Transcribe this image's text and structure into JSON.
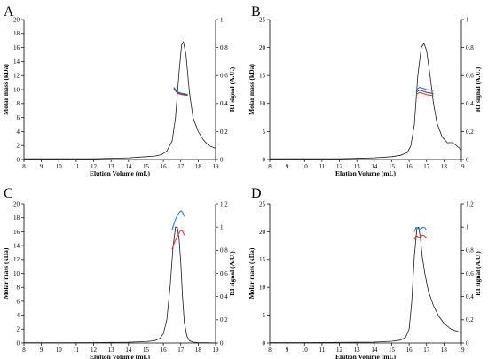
{
  "chart_data": [
    {
      "type": "line",
      "panel_label": "A",
      "xlabel": "Elution Volume (mL)",
      "ylabel": "Molar mass (kDa)",
      "y2label": "RI signal (A.U.)",
      "xlim": [
        8,
        19
      ],
      "xticks": [
        8,
        9,
        10,
        11,
        12,
        13,
        14,
        15,
        16,
        17,
        18,
        19
      ],
      "ylim": [
        0,
        20
      ],
      "yticks": [
        0,
        2,
        4,
        6,
        8,
        10,
        12,
        14,
        16,
        18,
        20
      ],
      "y2lim": [
        0,
        1
      ],
      "y2ticks": [
        0,
        0.2,
        0.4,
        0.6,
        0.8,
        1
      ],
      "series": [
        {
          "axis": "y2",
          "style": "ri",
          "x": [
            8,
            10,
            12,
            13,
            14,
            15,
            15.5,
            15.9,
            16.2,
            16.5,
            16.7,
            16.9,
            17.05,
            17.15,
            17.3,
            17.5,
            17.7,
            18.0,
            18.3,
            18.6,
            19.0
          ],
          "y": [
            0.005,
            0.005,
            0.006,
            0.008,
            0.012,
            0.02,
            0.025,
            0.035,
            0.06,
            0.13,
            0.3,
            0.62,
            0.82,
            0.84,
            0.75,
            0.48,
            0.3,
            0.2,
            0.14,
            0.1,
            0.08
          ]
        },
        {
          "axis": "y",
          "style": "blue",
          "x": [
            16.6,
            16.8,
            17.0,
            17.2,
            17.4
          ],
          "y": [
            10.3,
            9.7,
            9.5,
            9.4,
            9.3
          ]
        },
        {
          "axis": "y",
          "style": "red",
          "x": [
            16.6,
            16.8,
            17.0,
            17.2,
            17.4
          ],
          "y": [
            10.1,
            9.5,
            9.3,
            9.2,
            9.2
          ]
        },
        {
          "axis": "y",
          "style": "dark",
          "x": [
            16.6,
            16.8,
            17.0,
            17.2,
            17.4
          ],
          "y": [
            10.2,
            9.6,
            9.4,
            9.3,
            9.2
          ]
        }
      ]
    },
    {
      "type": "line",
      "panel_label": "B",
      "xlabel": "Elution Volume (mL)",
      "ylabel": "Molar mass (kDa)",
      "y2label": "RI signal (A.U.)",
      "xlim": [
        8,
        19
      ],
      "xticks": [
        8,
        9,
        10,
        11,
        12,
        13,
        14,
        15,
        16,
        17,
        18,
        19
      ],
      "ylim": [
        0,
        25
      ],
      "yticks": [
        0,
        5,
        10,
        15,
        20,
        25
      ],
      "y2lim": [
        0,
        1
      ],
      "y2ticks": [
        0,
        0.2,
        0.4,
        0.6,
        0.8,
        1
      ],
      "series": [
        {
          "axis": "y2",
          "style": "ri",
          "x": [
            8,
            10,
            12,
            13,
            14,
            15,
            15.5,
            15.9,
            16.1,
            16.3,
            16.5,
            16.7,
            16.85,
            17.0,
            17.2,
            17.4,
            17.6,
            17.9,
            18.2,
            18.5,
            18.8,
            19.0
          ],
          "y": [
            0.005,
            0.005,
            0.006,
            0.008,
            0.012,
            0.02,
            0.03,
            0.05,
            0.1,
            0.25,
            0.6,
            0.8,
            0.83,
            0.78,
            0.6,
            0.4,
            0.26,
            0.16,
            0.12,
            0.12,
            0.09,
            0.07
          ]
        },
        {
          "axis": "y",
          "style": "blue",
          "x": [
            16.4,
            16.6,
            16.8,
            17.0,
            17.2,
            17.4
          ],
          "y": [
            12.4,
            12.9,
            12.7,
            12.5,
            12.4,
            12.3
          ]
        },
        {
          "axis": "y",
          "style": "red",
          "x": [
            16.4,
            16.6,
            16.8,
            17.0,
            17.2,
            17.4
          ],
          "y": [
            11.6,
            12.0,
            11.8,
            11.6,
            11.5,
            11.4
          ]
        },
        {
          "axis": "y",
          "style": "dark",
          "x": [
            16.4,
            16.6,
            16.8,
            17.0,
            17.2,
            17.4
          ],
          "y": [
            12.0,
            12.4,
            12.2,
            12.0,
            11.9,
            11.8
          ]
        }
      ]
    },
    {
      "type": "line",
      "panel_label": "C",
      "xlabel": "Elution Volume (mL)",
      "ylabel": "Molar mass (kDa)",
      "y2label": "RI signal (A.U.)",
      "xlim": [
        8,
        19
      ],
      "xticks": [
        8,
        9,
        10,
        11,
        12,
        13,
        14,
        15,
        16,
        17,
        18,
        19
      ],
      "ylim": [
        0,
        20
      ],
      "yticks": [
        0,
        2,
        4,
        6,
        8,
        10,
        12,
        14,
        16,
        18,
        20
      ],
      "y2lim": [
        0,
        1.2
      ],
      "y2ticks": [
        0,
        0.2,
        0.4,
        0.6,
        0.8,
        1,
        1.2
      ],
      "series": [
        {
          "axis": "y2",
          "style": "ri",
          "x": [
            8,
            10,
            12,
            13,
            14,
            15,
            15.5,
            15.8,
            16.0,
            16.2,
            16.4,
            16.55,
            16.7,
            16.8,
            16.9,
            17.0,
            17.1,
            17.2,
            17.35,
            17.5,
            17.7,
            18.0,
            18.5,
            19.0
          ],
          "y": [
            0.003,
            0.003,
            0.004,
            0.005,
            0.007,
            0.012,
            0.02,
            0.04,
            0.08,
            0.2,
            0.5,
            0.82,
            1.0,
            1.0,
            0.9,
            0.7,
            0.4,
            0.18,
            0.06,
            0.02,
            0.008,
            0.004,
            0.002,
            0.001
          ]
        },
        {
          "axis": "y",
          "style": "blue",
          "x": [
            16.5,
            16.6,
            16.7,
            16.8,
            16.9,
            17.0,
            17.1,
            17.2
          ],
          "y": [
            16.2,
            17.1,
            17.8,
            18.3,
            18.7,
            19.0,
            18.8,
            18.2
          ]
        },
        {
          "axis": "y",
          "style": "red",
          "x": [
            16.5,
            16.6,
            16.7,
            16.8,
            16.9,
            17.0,
            17.1,
            17.2
          ],
          "y": [
            13.5,
            14.2,
            14.8,
            15.3,
            15.8,
            16.2,
            16.1,
            15.5
          ]
        }
      ]
    },
    {
      "type": "line",
      "panel_label": "D",
      "xlabel": "Elution Volume (mL)",
      "ylabel": "Molar mass (kDa)",
      "y2label": "RI signal (A.U.)",
      "xlim": [
        8,
        19
      ],
      "xticks": [
        8,
        9,
        10,
        11,
        12,
        13,
        14,
        15,
        16,
        17,
        18,
        19
      ],
      "ylim": [
        0,
        25
      ],
      "yticks": [
        0,
        5,
        10,
        15,
        20,
        25
      ],
      "y2lim": [
        0,
        1.2
      ],
      "y2ticks": [
        0,
        0.2,
        0.4,
        0.6,
        0.8,
        1,
        1.2
      ],
      "series": [
        {
          "axis": "y2",
          "style": "ri",
          "x": [
            8,
            10,
            12,
            13,
            14,
            15,
            15.5,
            15.8,
            16.0,
            16.15,
            16.3,
            16.45,
            16.55,
            16.65,
            16.75,
            16.9,
            17.1,
            17.4,
            17.7,
            18.0,
            18.4,
            18.8,
            19.0
          ],
          "y": [
            0.004,
            0.004,
            0.005,
            0.006,
            0.008,
            0.015,
            0.025,
            0.05,
            0.12,
            0.35,
            0.75,
            0.99,
            1.0,
            0.9,
            0.75,
            0.6,
            0.45,
            0.32,
            0.23,
            0.17,
            0.12,
            0.1,
            0.09
          ]
        },
        {
          "axis": "y",
          "style": "blue",
          "x": [
            16.3,
            16.4,
            16.5,
            16.6,
            16.7,
            16.8,
            16.9,
            17.0
          ],
          "y": [
            20.0,
            20.8,
            20.6,
            20.4,
            20.6,
            20.8,
            20.7,
            20.3
          ]
        },
        {
          "axis": "y",
          "style": "red",
          "x": [
            16.3,
            16.4,
            16.5,
            16.6,
            16.7,
            16.8,
            16.9,
            17.0
          ],
          "y": [
            18.6,
            19.3,
            19.1,
            19.0,
            19.2,
            19.4,
            19.2,
            18.9
          ]
        }
      ]
    }
  ]
}
